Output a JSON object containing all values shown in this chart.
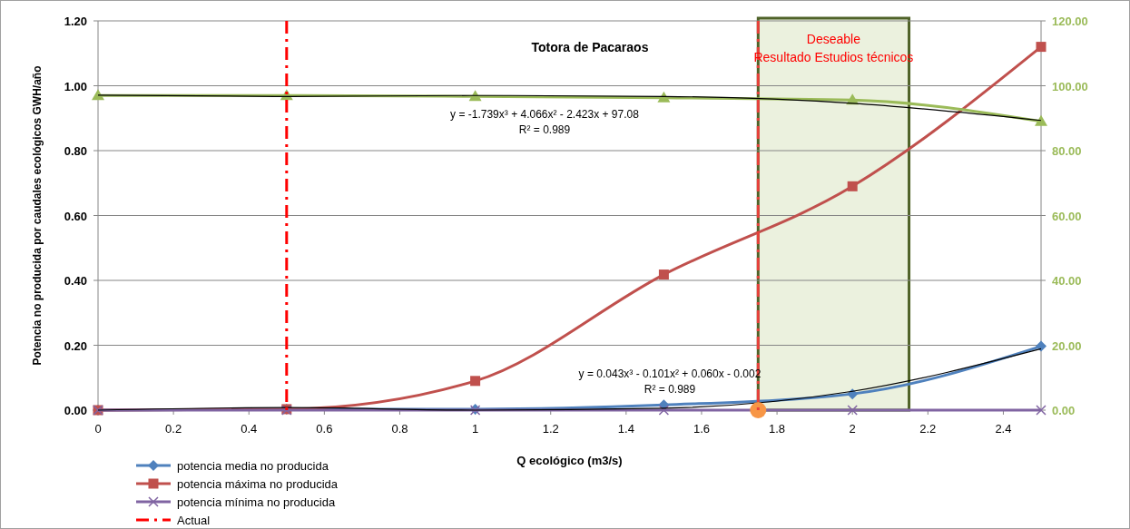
{
  "chart_data": {
    "type": "line",
    "title": "Totora de Pacaraos",
    "xlabel": "Q ecológico (m3/s)",
    "ylabel": "Potencia no producida por caudales ecológicos GWH/año",
    "x": [
      0,
      0.5,
      1,
      1.5,
      2,
      2.5
    ],
    "xlim": [
      0,
      2.5
    ],
    "xticks": [
      0,
      0.2,
      0.4,
      0.6,
      0.8,
      1,
      1.2,
      1.4,
      1.6,
      1.8,
      2,
      2.2,
      2.4
    ],
    "ylim": [
      0,
      1.2
    ],
    "yticks": [
      {
        "value": 0,
        "label": "0.00"
      },
      {
        "value": 0.2,
        "label": "0.20"
      },
      {
        "value": 0.4,
        "label": "0.40"
      },
      {
        "value": 0.6,
        "label": "0.60"
      },
      {
        "value": 0.8,
        "label": "0.80"
      },
      {
        "value": 1,
        "label": "1.00"
      },
      {
        "value": 1.2,
        "label": "1.20"
      }
    ],
    "y2lim": [
      0,
      120
    ],
    "y2ticks": [
      {
        "value": 0,
        "label": "0.00"
      },
      {
        "value": 20,
        "label": "20.00"
      },
      {
        "value": 40,
        "label": "40.00"
      },
      {
        "value": 60,
        "label": "60.00"
      },
      {
        "value": 80,
        "label": "80.00"
      },
      {
        "value": 100,
        "label": "100.00"
      },
      {
        "value": 120,
        "label": "120.00"
      }
    ],
    "grid": "y",
    "legend": "bottom",
    "series": [
      {
        "name": "potencia media no producida",
        "color": "#4f81bd",
        "marker": "diamond",
        "values": [
          0,
          0.003,
          0.003,
          0.016,
          0.05,
          0.197
        ]
      },
      {
        "name": "potencia máxima no producida",
        "color": "#c0504d",
        "marker": "square",
        "values": [
          0,
          0.003,
          0.09,
          0.418,
          0.69,
          1.12
        ]
      },
      {
        "name": "potencia mínima no producida",
        "color": "#8064a2",
        "marker": "cross",
        "values": [
          0,
          0,
          0,
          0,
          0,
          0
        ]
      },
      {
        "color": "#9bbb59",
        "marker": "triangle",
        "axis": "y2",
        "values": [
          97,
          97,
          96.7,
          96.3,
          95.6,
          89
        ]
      },
      {
        "color": "#000000",
        "marker": "none",
        "axis": "y2",
        "values": [
          97.1,
          96.7,
          97,
          96.7,
          94.6,
          89.3
        ]
      },
      {
        "color": "#000000",
        "marker": "none",
        "values": [
          0,
          0.008,
          0,
          0.006,
          0.058,
          0.189
        ]
      },
      {
        "type": "scatter",
        "color": "#f79646",
        "marker": "circle",
        "x": [
          1.75
        ],
        "values": [
          0
        ]
      }
    ],
    "ref_lines": [
      {
        "axis": "x",
        "value": 0.5,
        "label": "Actual",
        "color": "#ff0000",
        "line_style": "dashed"
      },
      {
        "axis": "x",
        "value": 1.75,
        "color": "#e8403a",
        "line_style": "dashed"
      }
    ],
    "bands": [
      {
        "axis": "x",
        "from": 1.75,
        "to": 2.15,
        "label": "Deseable\nResultado Estudios técnicos",
        "color": "#ebf1de"
      }
    ],
    "annotations": [
      "y = -1.739x³ + 4.066x² - 2.423x + 97.08\nR² = 0.989",
      "y = 0.043x³ - 0.101x² + 0.060x - 0.002\nR² = 0.989"
    ]
  }
}
